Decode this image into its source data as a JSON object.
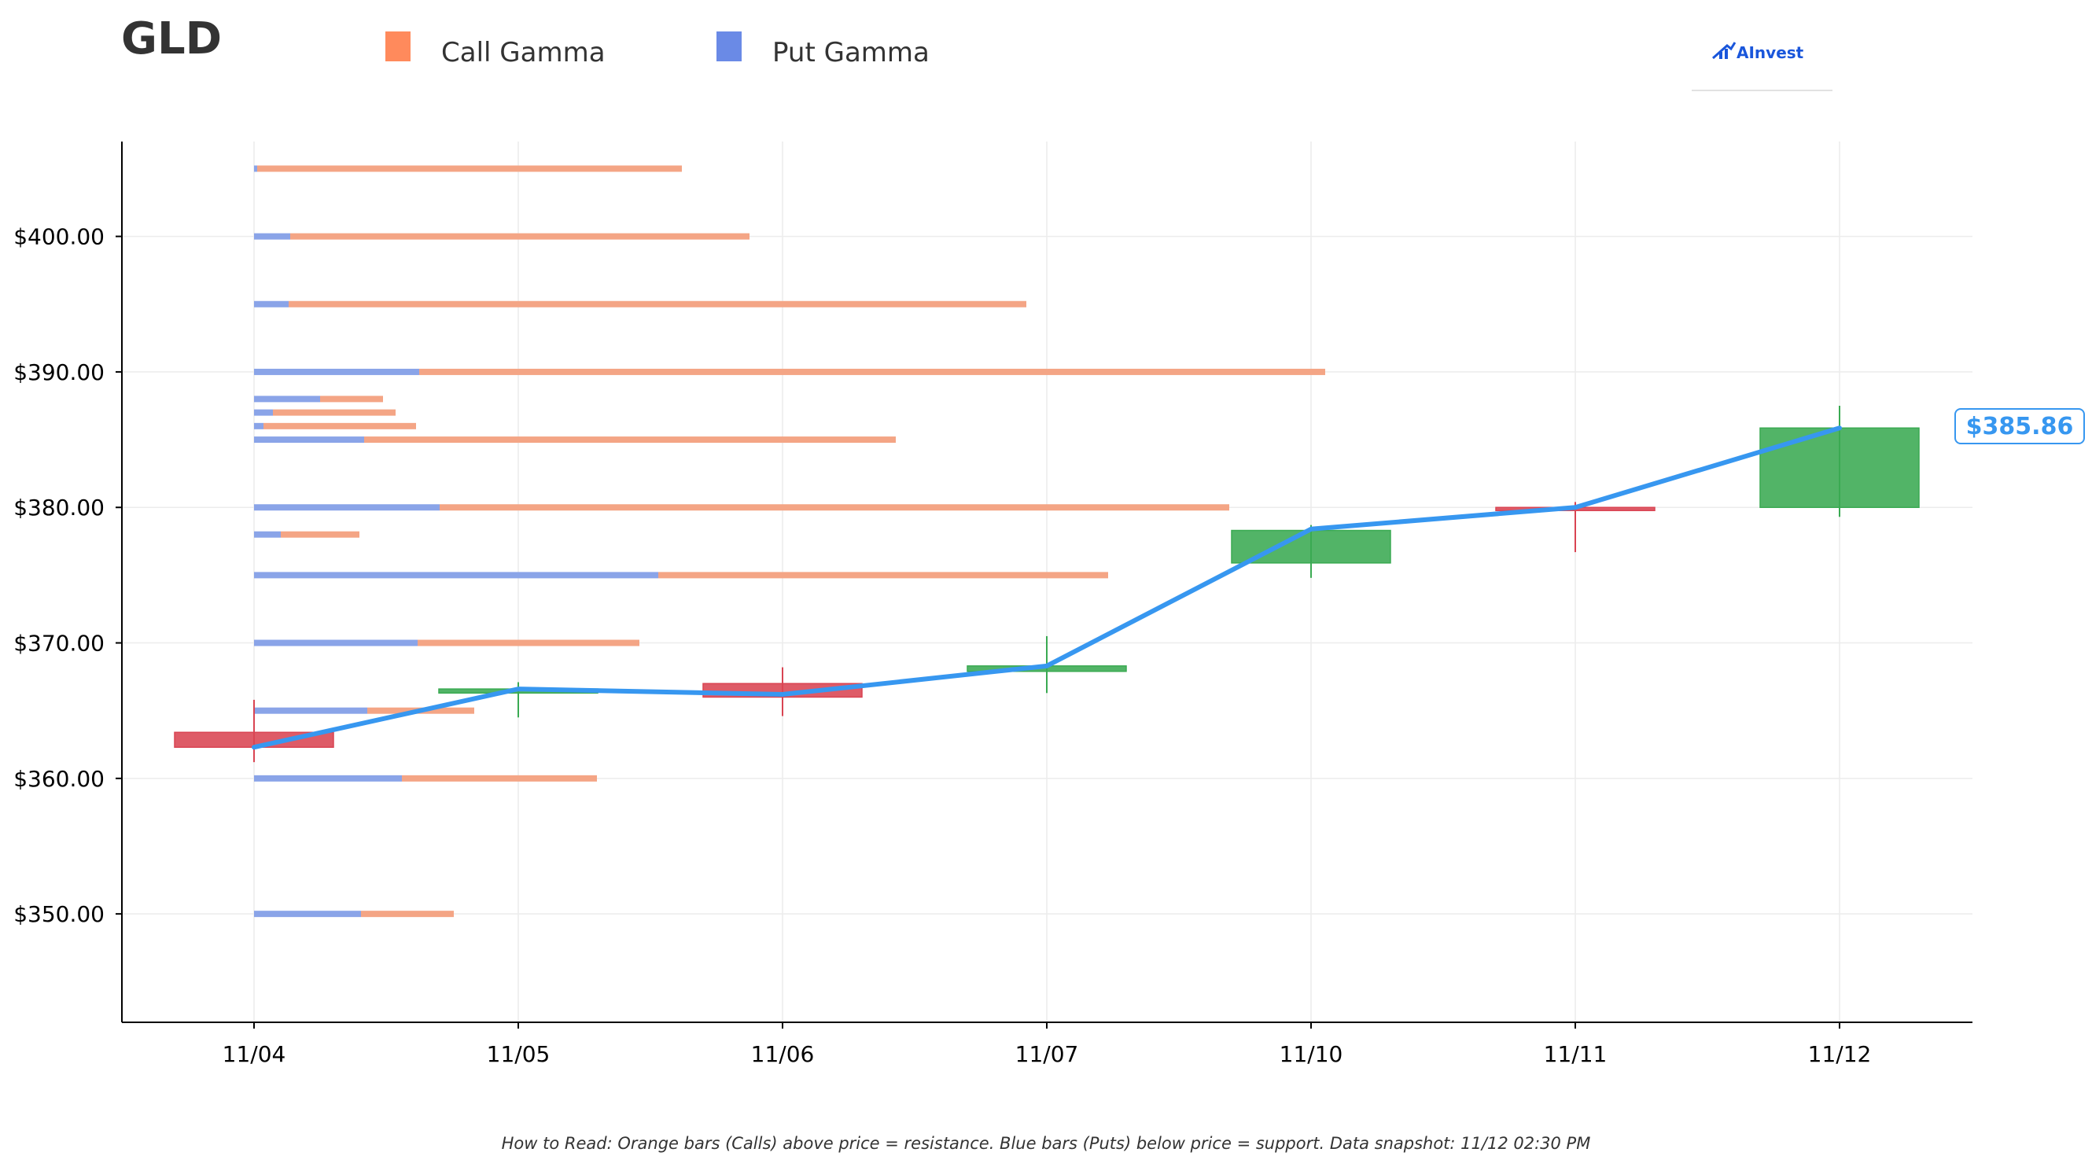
{
  "chart_data": {
    "type": "bar",
    "title": "GLD",
    "legend": [
      {
        "label": "Call Gamma",
        "color": "#ff8a5c"
      },
      {
        "label": "Put Gamma",
        "color": "#6a8ae6"
      }
    ],
    "legend_placement": "top",
    "watermark": "AInvest",
    "categories": [
      "11/04",
      "11/05",
      "11/06",
      "11/07",
      "11/10",
      "11/11",
      "11/12"
    ],
    "ylim": [
      342,
      407
    ],
    "yticks": [
      350,
      360,
      370,
      380,
      390,
      400
    ],
    "ytick_labels": [
      "$350.00",
      "$360.00",
      "$370.00",
      "$380.00",
      "$390.00",
      "$400.00"
    ],
    "grid": true,
    "candles": [
      {
        "date": "11/04",
        "open": 363.4,
        "close": 362.3,
        "high": 365.8,
        "low": 361.2,
        "direction": "down"
      },
      {
        "date": "11/05",
        "open": 366.3,
        "close": 366.6,
        "high": 367.1,
        "low": 364.5,
        "direction": "up"
      },
      {
        "date": "11/06",
        "open": 367.0,
        "close": 366.0,
        "high": 368.2,
        "low": 364.6,
        "direction": "down"
      },
      {
        "date": "11/07",
        "open": 367.9,
        "close": 368.3,
        "high": 370.5,
        "low": 366.3,
        "direction": "up"
      },
      {
        "date": "11/10",
        "open": 375.9,
        "close": 378.3,
        "high": 378.7,
        "low": 374.8,
        "direction": "up"
      },
      {
        "date": "11/11",
        "open": 380.0,
        "close": 379.8,
        "high": 380.4,
        "low": 376.7,
        "direction": "down"
      },
      {
        "date": "11/12",
        "open": 380.0,
        "close": 385.86,
        "high": 387.5,
        "low": 379.3,
        "direction": "up"
      }
    ],
    "price_line": {
      "name": "Price",
      "color": "#3797f0",
      "values": [
        362.3,
        366.6,
        366.2,
        368.3,
        378.4,
        380.0,
        385.86
      ]
    },
    "last_price_label": "$385.86",
    "gamma_strikes": [
      {
        "strike": 405,
        "put_gamma": 0.2,
        "call_gamma": 27.0
      },
      {
        "strike": 400,
        "put_gamma": 2.3,
        "call_gamma": 29.2
      },
      {
        "strike": 395,
        "put_gamma": 2.2,
        "call_gamma": 46.9
      },
      {
        "strike": 390,
        "put_gamma": 10.5,
        "call_gamma": 57.6
      },
      {
        "strike": 388,
        "put_gamma": 4.2,
        "call_gamma": 4.0
      },
      {
        "strike": 387,
        "put_gamma": 1.2,
        "call_gamma": 7.8
      },
      {
        "strike": 386,
        "put_gamma": 0.6,
        "call_gamma": 9.7
      },
      {
        "strike": 385,
        "put_gamma": 7.0,
        "call_gamma": 33.8
      },
      {
        "strike": 380,
        "put_gamma": 11.8,
        "call_gamma": 50.2
      },
      {
        "strike": 378,
        "put_gamma": 1.7,
        "call_gamma": 5.0
      },
      {
        "strike": 375,
        "put_gamma": 25.7,
        "call_gamma": 28.6
      },
      {
        "strike": 370,
        "put_gamma": 10.4,
        "call_gamma": 14.1
      },
      {
        "strike": 365,
        "put_gamma": 7.2,
        "call_gamma": 6.8
      },
      {
        "strike": 360,
        "put_gamma": 9.4,
        "call_gamma": 12.4
      },
      {
        "strike": 350,
        "put_gamma": 6.8,
        "call_gamma": 5.9
      }
    ],
    "colors": {
      "call_bar": "#f4a585",
      "put_bar": "#8aa4e8",
      "candle_up": "#3aaa52",
      "candle_down": "#d94452",
      "grid": "#ececec"
    },
    "footnote": "How to Read: Orange bars (Calls) above price = resistance. Blue bars (Puts) below price = support. Data snapshot: 11/12 02:30 PM"
  }
}
